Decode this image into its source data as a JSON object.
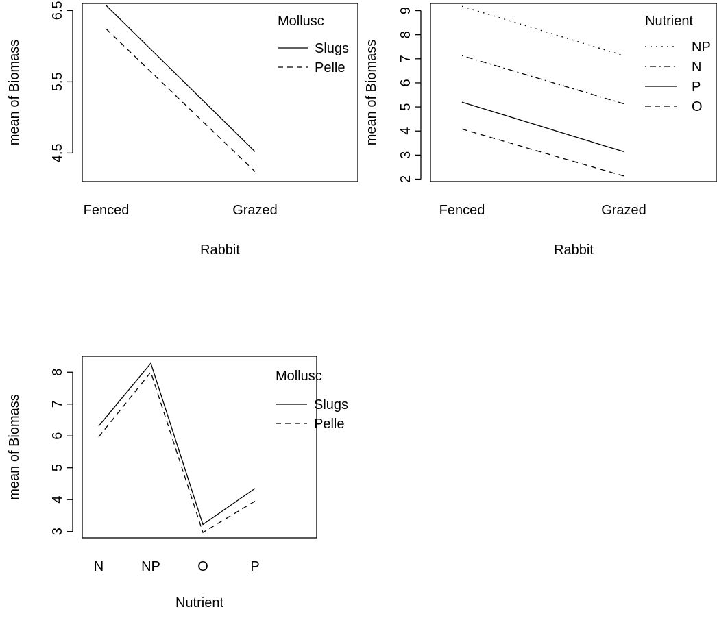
{
  "chart_data": [
    {
      "type": "line",
      "xlabel": "Rabbit",
      "ylabel": "mean of  Biomass",
      "categories": [
        "Fenced",
        "Grazed"
      ],
      "yticks": [
        "4.5",
        "5.5",
        "6.5"
      ],
      "ylim": [
        4.1,
        6.6
      ],
      "legend_title": "Mollusc",
      "legend_position": "top-right",
      "series": [
        {
          "name": "Slugs",
          "legend_text": "Slugs",
          "dash": "solid",
          "values": [
            6.57,
            4.52
          ]
        },
        {
          "name": "Pellets",
          "legend_text": "Pelle",
          "dash": "dashed",
          "values": [
            6.24,
            4.24
          ]
        }
      ]
    },
    {
      "type": "line",
      "xlabel": "Rabbit",
      "ylabel": "mean of  Biomass",
      "categories": [
        "Fenced",
        "Grazed"
      ],
      "yticks": [
        "2",
        "3",
        "4",
        "5",
        "6",
        "7",
        "8",
        "9"
      ],
      "ylim": [
        1.9,
        9.3
      ],
      "legend_title": "Nutrient",
      "legend_position": "top-right",
      "series": [
        {
          "name": "NP",
          "legend_text": "NP",
          "dash": "dotted",
          "values": [
            9.18,
            7.13
          ]
        },
        {
          "name": "N",
          "legend_text": "N",
          "dash": "dotdash",
          "values": [
            7.13,
            5.13
          ]
        },
        {
          "name": "P",
          "legend_text": "P",
          "dash": "solid",
          "values": [
            5.2,
            3.14
          ]
        },
        {
          "name": "O",
          "legend_text": "O",
          "dash": "dashed",
          "values": [
            4.08,
            2.13
          ]
        }
      ]
    },
    {
      "type": "line",
      "xlabel": "Nutrient",
      "ylabel": "mean of  Biomass",
      "categories": [
        "N",
        "NP",
        "O",
        "P"
      ],
      "yticks": [
        "3",
        "4",
        "5",
        "6",
        "7",
        "8"
      ],
      "ylim": [
        2.8,
        8.5
      ],
      "legend_title": "Mollusc",
      "legend_position": "top-right",
      "series": [
        {
          "name": "Slugs",
          "legend_text": "Slugs",
          "dash": "solid",
          "values": [
            6.31,
            8.28,
            3.22,
            4.35
          ]
        },
        {
          "name": "Pellets",
          "legend_text": "Pelle",
          "dash": "dashed",
          "values": [
            5.97,
            8.0,
            2.97,
            3.95
          ]
        }
      ]
    }
  ]
}
